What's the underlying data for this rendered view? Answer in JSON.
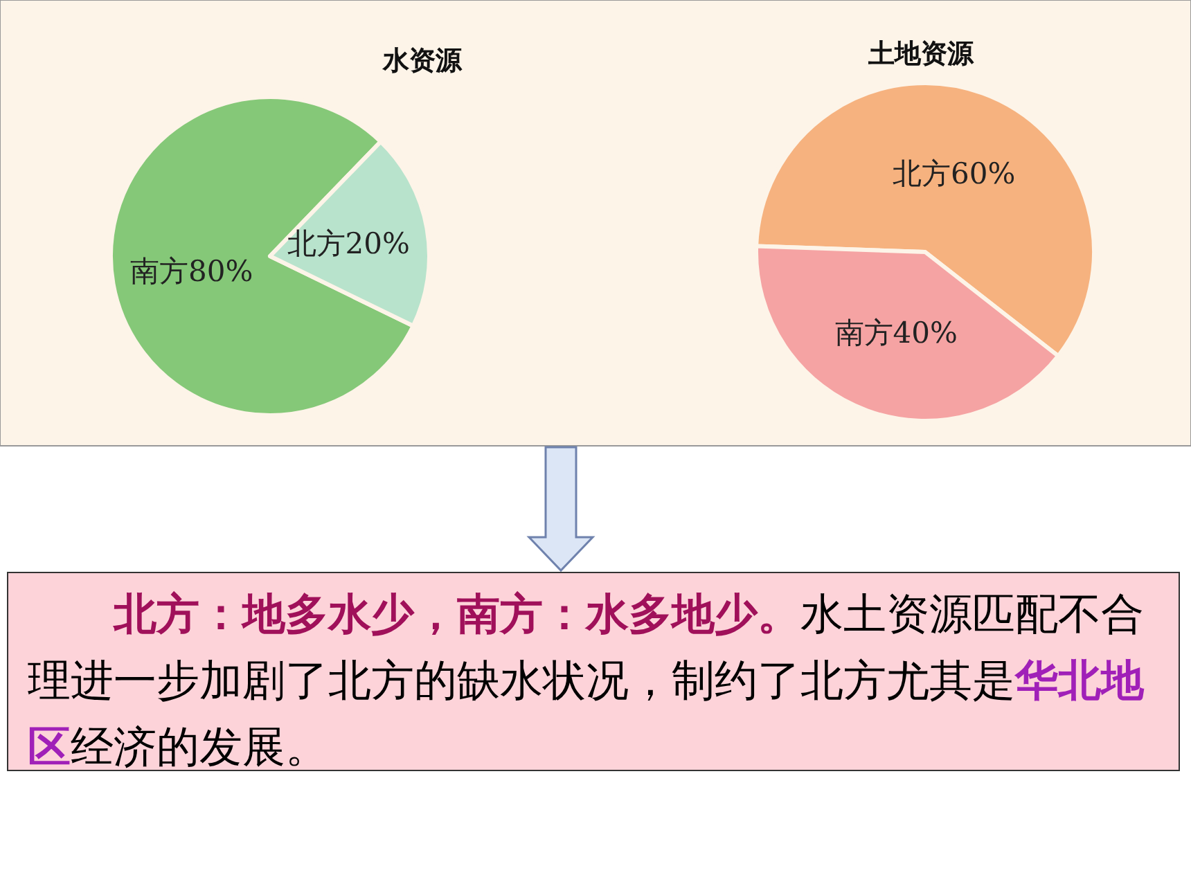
{
  "chart_data": [
    {
      "type": "pie",
      "title": "水资源",
      "categories": [
        "南方",
        "北方"
      ],
      "values": [
        80,
        20
      ],
      "colors": [
        "#85c878",
        "#b8e3cc"
      ],
      "value_labels": [
        "80%",
        "20%"
      ]
    },
    {
      "type": "pie",
      "title": "土地资源",
      "categories": [
        "北方",
        "南方"
      ],
      "values": [
        60,
        40
      ],
      "colors": [
        "#f6b27f",
        "#f5a3a3"
      ],
      "value_labels": [
        "60%",
        "40%"
      ]
    },
    {
      "type": "other",
      "annotations": [
        "北方：地多水少，南方：水多地少。",
        "水土资源匹配不合理进一步加剧了北方的缺水状况，制约了北方尤其是",
        "华北地区",
        "经济的发展。"
      ],
      "colors": [
        "#a0105a",
        "#000000",
        "#a020b8",
        "#000000"
      ]
    }
  ]
}
